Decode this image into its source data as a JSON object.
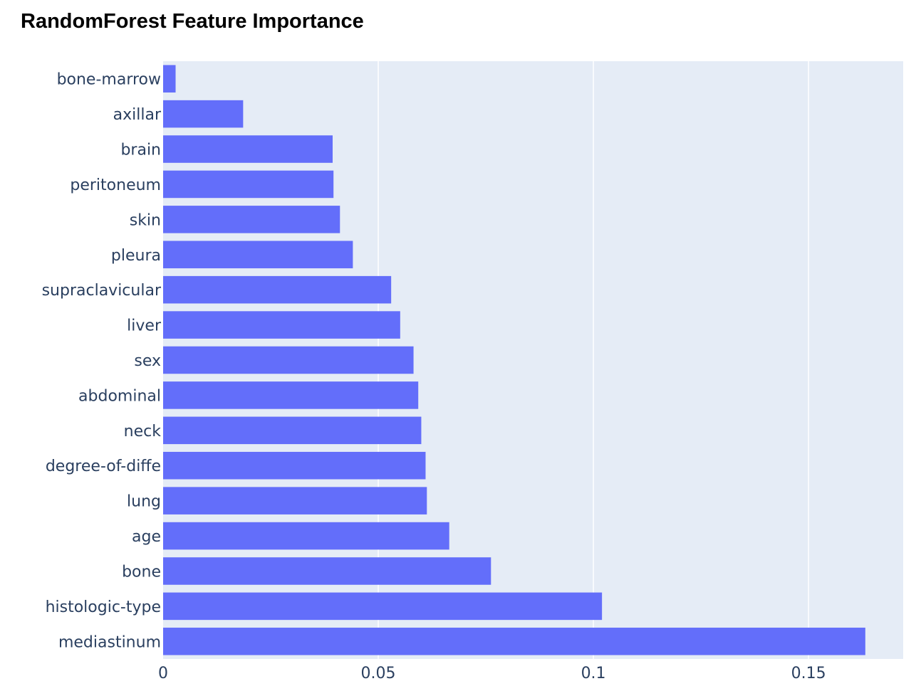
{
  "chart_data": {
    "type": "bar",
    "orientation": "horizontal",
    "title": "RandomForest Feature Importance",
    "xlabel": "",
    "ylabel": "",
    "categories": [
      "bone-marrow",
      "axillar",
      "brain",
      "peritoneum",
      "skin",
      "pleura",
      "supraclavicular",
      "liver",
      "sex",
      "abdominal",
      "neck",
      "degree-of-diffe",
      "lung",
      "age",
      "bone",
      "histologic-type",
      "mediastinum"
    ],
    "values": [
      0.0029,
      0.0186,
      0.0394,
      0.0396,
      0.0411,
      0.0441,
      0.053,
      0.0551,
      0.0582,
      0.0593,
      0.06,
      0.061,
      0.0613,
      0.0665,
      0.0762,
      0.102,
      0.1632
    ],
    "xlim": [
      0,
      0.172
    ],
    "xticks": [
      0,
      0.05,
      0.1,
      0.15
    ],
    "xtick_labels": [
      "0",
      "0.05",
      "0.1",
      "0.15"
    ],
    "grid": true,
    "colors": {
      "bar": "#636efa",
      "plot_bg": "#e5ecf6",
      "grid": "#ffffff",
      "tick_text": "#2a3f5f"
    }
  }
}
